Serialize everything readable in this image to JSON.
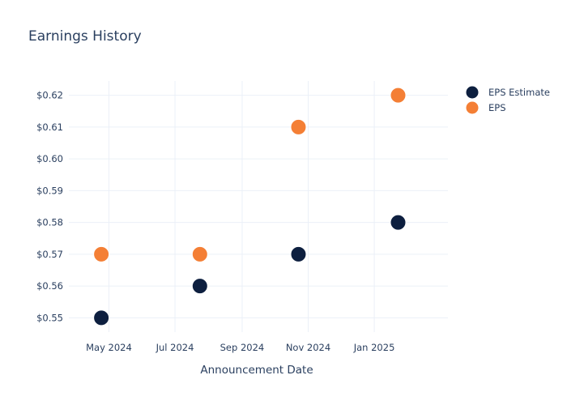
{
  "chart_data": {
    "type": "scatter",
    "title": "Earnings History",
    "xlabel": "Announcement Date",
    "ylabel": "",
    "x_axis_type": "date",
    "xlim": [
      "2024-03-25",
      "2025-03-10"
    ],
    "ylim": [
      0.5455,
      0.6245
    ],
    "x_ticks": [
      {
        "date": "2024-05-01",
        "label": "May 2024"
      },
      {
        "date": "2024-07-01",
        "label": "Jul 2024"
      },
      {
        "date": "2024-09-01",
        "label": "Sep 2024"
      },
      {
        "date": "2024-11-01",
        "label": "Nov 2024"
      },
      {
        "date": "2025-01-01",
        "label": "Jan 2025"
      }
    ],
    "y_ticks": [
      {
        "value": 0.55,
        "label": "$0.55"
      },
      {
        "value": 0.56,
        "label": "$0.56"
      },
      {
        "value": 0.57,
        "label": "$0.57"
      },
      {
        "value": 0.58,
        "label": "$0.58"
      },
      {
        "value": 0.59,
        "label": "$0.59"
      },
      {
        "value": 0.6,
        "label": "$0.60"
      },
      {
        "value": 0.61,
        "label": "$0.61"
      },
      {
        "value": 0.62,
        "label": "$0.62"
      }
    ],
    "grid": true,
    "legend_position": "top-right",
    "series": [
      {
        "name": "EPS Estimate",
        "color": "#0d1f3f",
        "points": [
          {
            "x": "2024-04-24",
            "y": 0.55
          },
          {
            "x": "2024-07-24",
            "y": 0.56
          },
          {
            "x": "2024-10-23",
            "y": 0.57
          },
          {
            "x": "2025-01-23",
            "y": 0.58
          }
        ]
      },
      {
        "name": "EPS",
        "color": "#f47f35",
        "points": [
          {
            "x": "2024-04-24",
            "y": 0.57
          },
          {
            "x": "2024-07-24",
            "y": 0.57
          },
          {
            "x": "2024-10-23",
            "y": 0.61
          },
          {
            "x": "2025-01-23",
            "y": 0.62
          }
        ]
      }
    ]
  }
}
